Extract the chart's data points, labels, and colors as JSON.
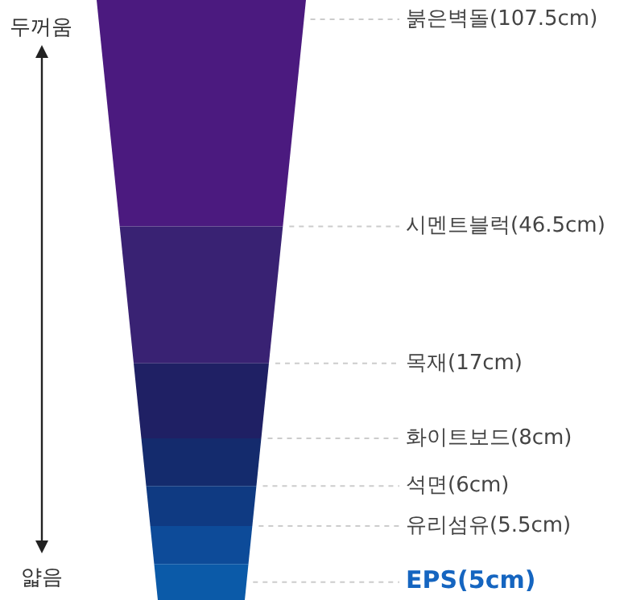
{
  "chart_data": {
    "type": "other",
    "categories": [
      "붉은벽돌",
      "시멘트블럭",
      "목재",
      "화이트보드",
      "석면",
      "유리섬유",
      "EPS"
    ],
    "values": [
      107.5,
      46.5,
      17,
      8,
      6,
      5.5,
      5
    ],
    "value_labels": [
      "(107.5cm)",
      "(46.5cm)",
      "(17cm)",
      "(8cm)",
      "(6cm)",
      "(5.5cm)",
      "(5cm)"
    ],
    "colors": [
      "#4b1a7f",
      "#392273",
      "#1f2064",
      "#142b6d",
      "#0f3a82",
      "#0d4b99",
      "#0b5aa8"
    ],
    "annotations": [
      "두꺼움",
      "얇음"
    ]
  }
}
